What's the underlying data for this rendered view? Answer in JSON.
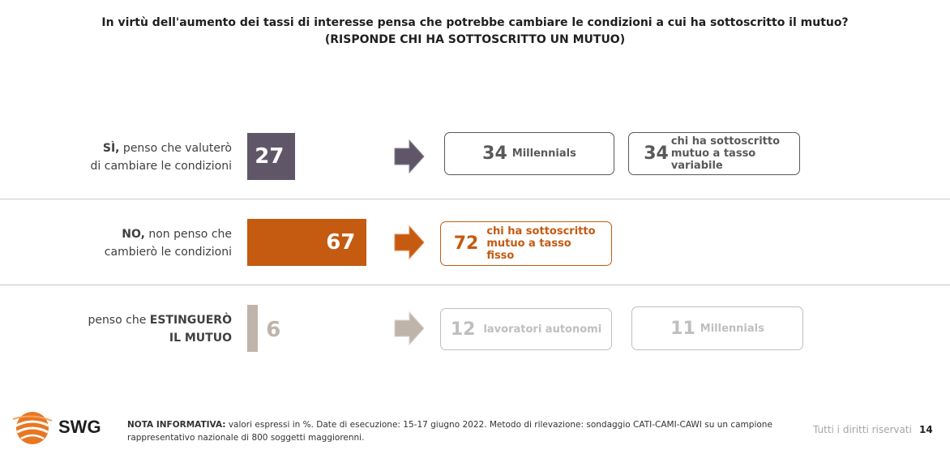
{
  "title": {
    "line1": "In virtù dell'aumento dei tassi di interesse pensa che potrebbe cambiare le condizioni a cui ha sottoscritto il mutuo?",
    "line2": "(RISPONDE CHI HA SOTTOSCRITTO UN MUTUO)"
  },
  "rows": [
    {
      "label_bold": "SÌ,",
      "label_rest1": " penso che valuterò",
      "label_line2": "di cambiare le condizioni",
      "value": "27",
      "boxes": [
        {
          "num": "34",
          "text": "Millennials"
        },
        {
          "num": "34",
          "text": "chi ha sottoscritto mutuo a tasso variabile"
        }
      ]
    },
    {
      "label_bold": "NO,",
      "label_rest1": " non penso che",
      "label_line2": "cambierò le condizioni",
      "value": "67",
      "boxes": [
        {
          "num": "72",
          "text": "chi ha sottoscritto mutuo a tasso fisso"
        }
      ]
    },
    {
      "label_pre": "penso che ",
      "label_bold": "ESTINGUERÒ",
      "label_line2": "IL MUTUO",
      "value": "6",
      "boxes": [
        {
          "num": "12",
          "text": "lavoratori autonomi"
        },
        {
          "num": "11",
          "text": "Millennials"
        }
      ]
    }
  ],
  "chart_data": {
    "type": "bar",
    "categories": [
      "SÌ, penso che valuterò di cambiare le condizioni",
      "NO, non penso che cambierò le condizioni",
      "penso che ESTINGUERÒ IL MUTUO"
    ],
    "values": [
      27,
      67,
      6
    ],
    "colors": [
      "#5f5768",
      "#c55a11",
      "#bfb4aa"
    ]
  },
  "colors": {
    "si": "#5f5768",
    "no": "#c55a11",
    "est": "#bfb4aa",
    "box_si": "#595959",
    "box_est": "#bfbfbf"
  },
  "footer": {
    "brand": "SWG",
    "note_bold": "NOTA INFORMATIVA:",
    "note_rest": " valori espressi in %. Date di esecuzione: 15-17 giugno 2022. Metodo di rilevazione: sondaggio CATI-CAMI-CAWI su un campione rappresentativo nazionale di 800 soggetti maggiorenni.",
    "rights": "Tutti i diritti riservati",
    "page": "14"
  }
}
